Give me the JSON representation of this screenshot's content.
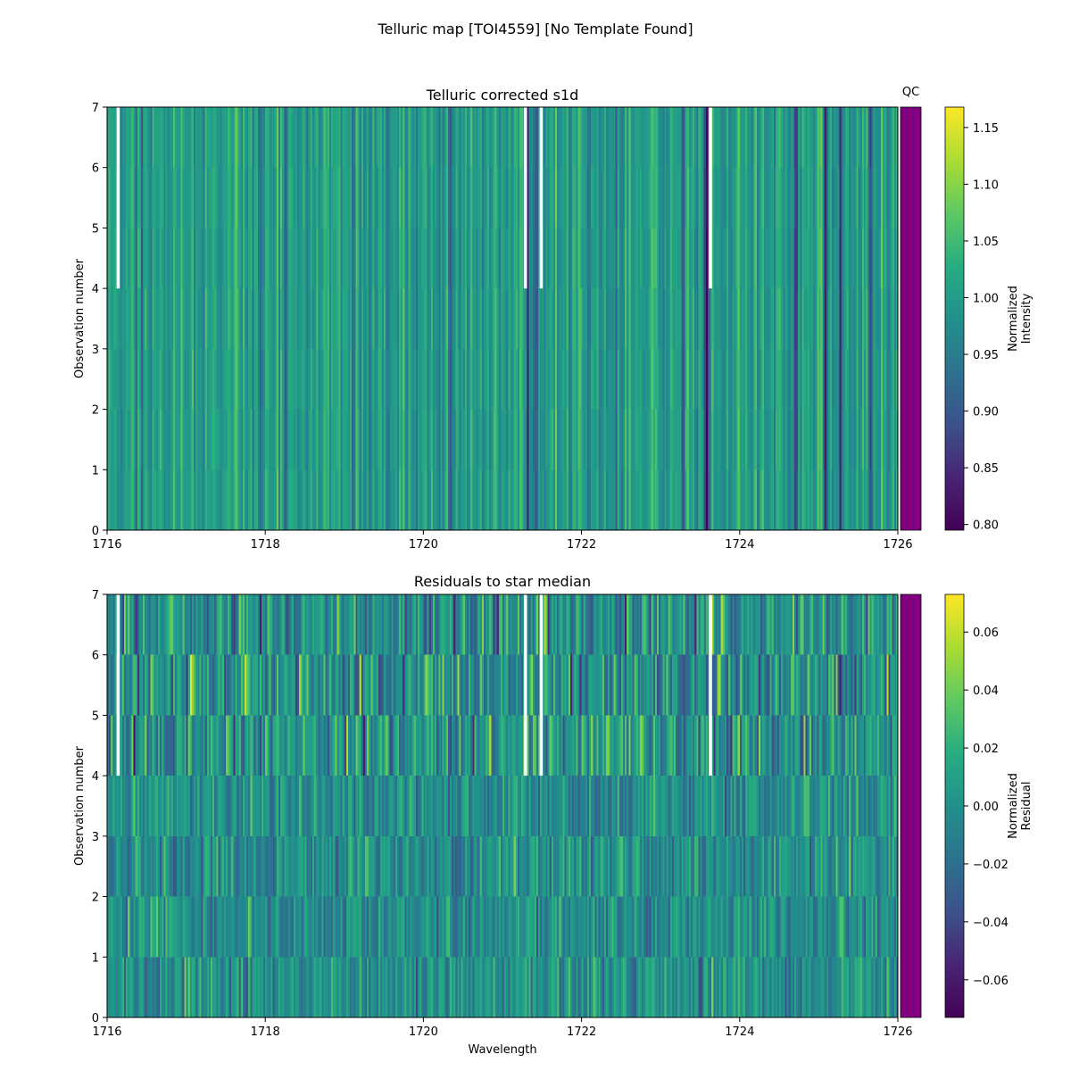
{
  "figure": {
    "suptitle": "Telluric map [TOI4559] [No Template Found]"
  },
  "chart_data": [
    {
      "type": "heatmap",
      "title": "Telluric corrected s1d",
      "xlabel": "",
      "ylabel": "Observation number",
      "xlim": [
        1716,
        1726
      ],
      "ylim": [
        0,
        7
      ],
      "xticks": [
        "1716",
        "1718",
        "1720",
        "1722",
        "1724",
        "1726"
      ],
      "yticks": [
        "0",
        "1",
        "2",
        "3",
        "4",
        "5",
        "6",
        "7"
      ],
      "colormap": "viridis",
      "n_observations": 7,
      "qc_label": "QC",
      "qc_color": "#800080",
      "colorbar": {
        "label_lines": [
          "Normalized",
          "Intensity"
        ],
        "range": [
          0.795,
          1.168
        ],
        "ticks": [
          "0.80",
          "0.85",
          "0.90",
          "0.95",
          "1.00",
          "1.05",
          "1.10",
          "1.15"
        ]
      },
      "gaps": [
        {
          "x": [
            1716.12,
            1716.16
          ],
          "y": [
            4,
            7
          ]
        },
        {
          "x": [
            1721.27,
            1721.31
          ],
          "y": [
            4,
            7
          ]
        },
        {
          "x": [
            1721.47,
            1721.51
          ],
          "y": [
            4,
            7
          ]
        },
        {
          "x": [
            1723.61,
            1723.65
          ],
          "y": [
            4,
            7
          ]
        }
      ],
      "absorption_lines": [
        {
          "x": 1716.45,
          "depth": 0.09
        },
        {
          "x": 1717.22,
          "depth": 0.1
        },
        {
          "x": 1717.95,
          "depth": 0.1
        },
        {
          "x": 1718.25,
          "depth": 0.08
        },
        {
          "x": 1718.68,
          "depth": 0.06
        },
        {
          "x": 1719.12,
          "depth": 0.14
        },
        {
          "x": 1719.55,
          "depth": 0.07
        },
        {
          "x": 1720.35,
          "depth": 0.08
        },
        {
          "x": 1721.32,
          "depth": 0.18
        },
        {
          "x": 1721.43,
          "depth": 0.15
        },
        {
          "x": 1721.85,
          "depth": 0.07
        },
        {
          "x": 1722.45,
          "depth": 0.06
        },
        {
          "x": 1723.28,
          "depth": 0.16
        },
        {
          "x": 1723.58,
          "depth": 0.18
        },
        {
          "x": 1724.15,
          "depth": 0.1
        },
        {
          "x": 1724.72,
          "depth": 0.17
        },
        {
          "x": 1725.08,
          "depth": 0.17
        },
        {
          "x": 1725.28,
          "depth": 0.14
        },
        {
          "x": 1725.65,
          "depth": 0.09
        }
      ]
    },
    {
      "type": "heatmap",
      "title": "Residuals to star median",
      "xlabel": "Wavelength",
      "ylabel": "Observation number",
      "xlim": [
        1716,
        1726
      ],
      "ylim": [
        0,
        7
      ],
      "xticks": [
        "1716",
        "1718",
        "1720",
        "1722",
        "1724",
        "1726"
      ],
      "yticks": [
        "0",
        "1",
        "2",
        "3",
        "4",
        "5",
        "6",
        "7"
      ],
      "colormap": "viridis",
      "n_observations": 7,
      "qc_color": "#800080",
      "colorbar": {
        "label_lines": [
          "Normalized",
          "Residual"
        ],
        "range": [
          -0.073,
          0.073
        ],
        "ticks": [
          "−0.06",
          "−0.04",
          "−0.02",
          "0.00",
          "0.02",
          "0.04",
          "0.06"
        ]
      },
      "gaps": [
        {
          "x": [
            1716.12,
            1716.16
          ],
          "y": [
            4,
            7
          ]
        },
        {
          "x": [
            1721.27,
            1721.31
          ],
          "y": [
            4,
            7
          ]
        },
        {
          "x": [
            1721.47,
            1721.51
          ],
          "y": [
            4,
            7
          ]
        },
        {
          "x": [
            1723.61,
            1723.65
          ],
          "y": [
            4,
            7
          ]
        }
      ]
    }
  ]
}
